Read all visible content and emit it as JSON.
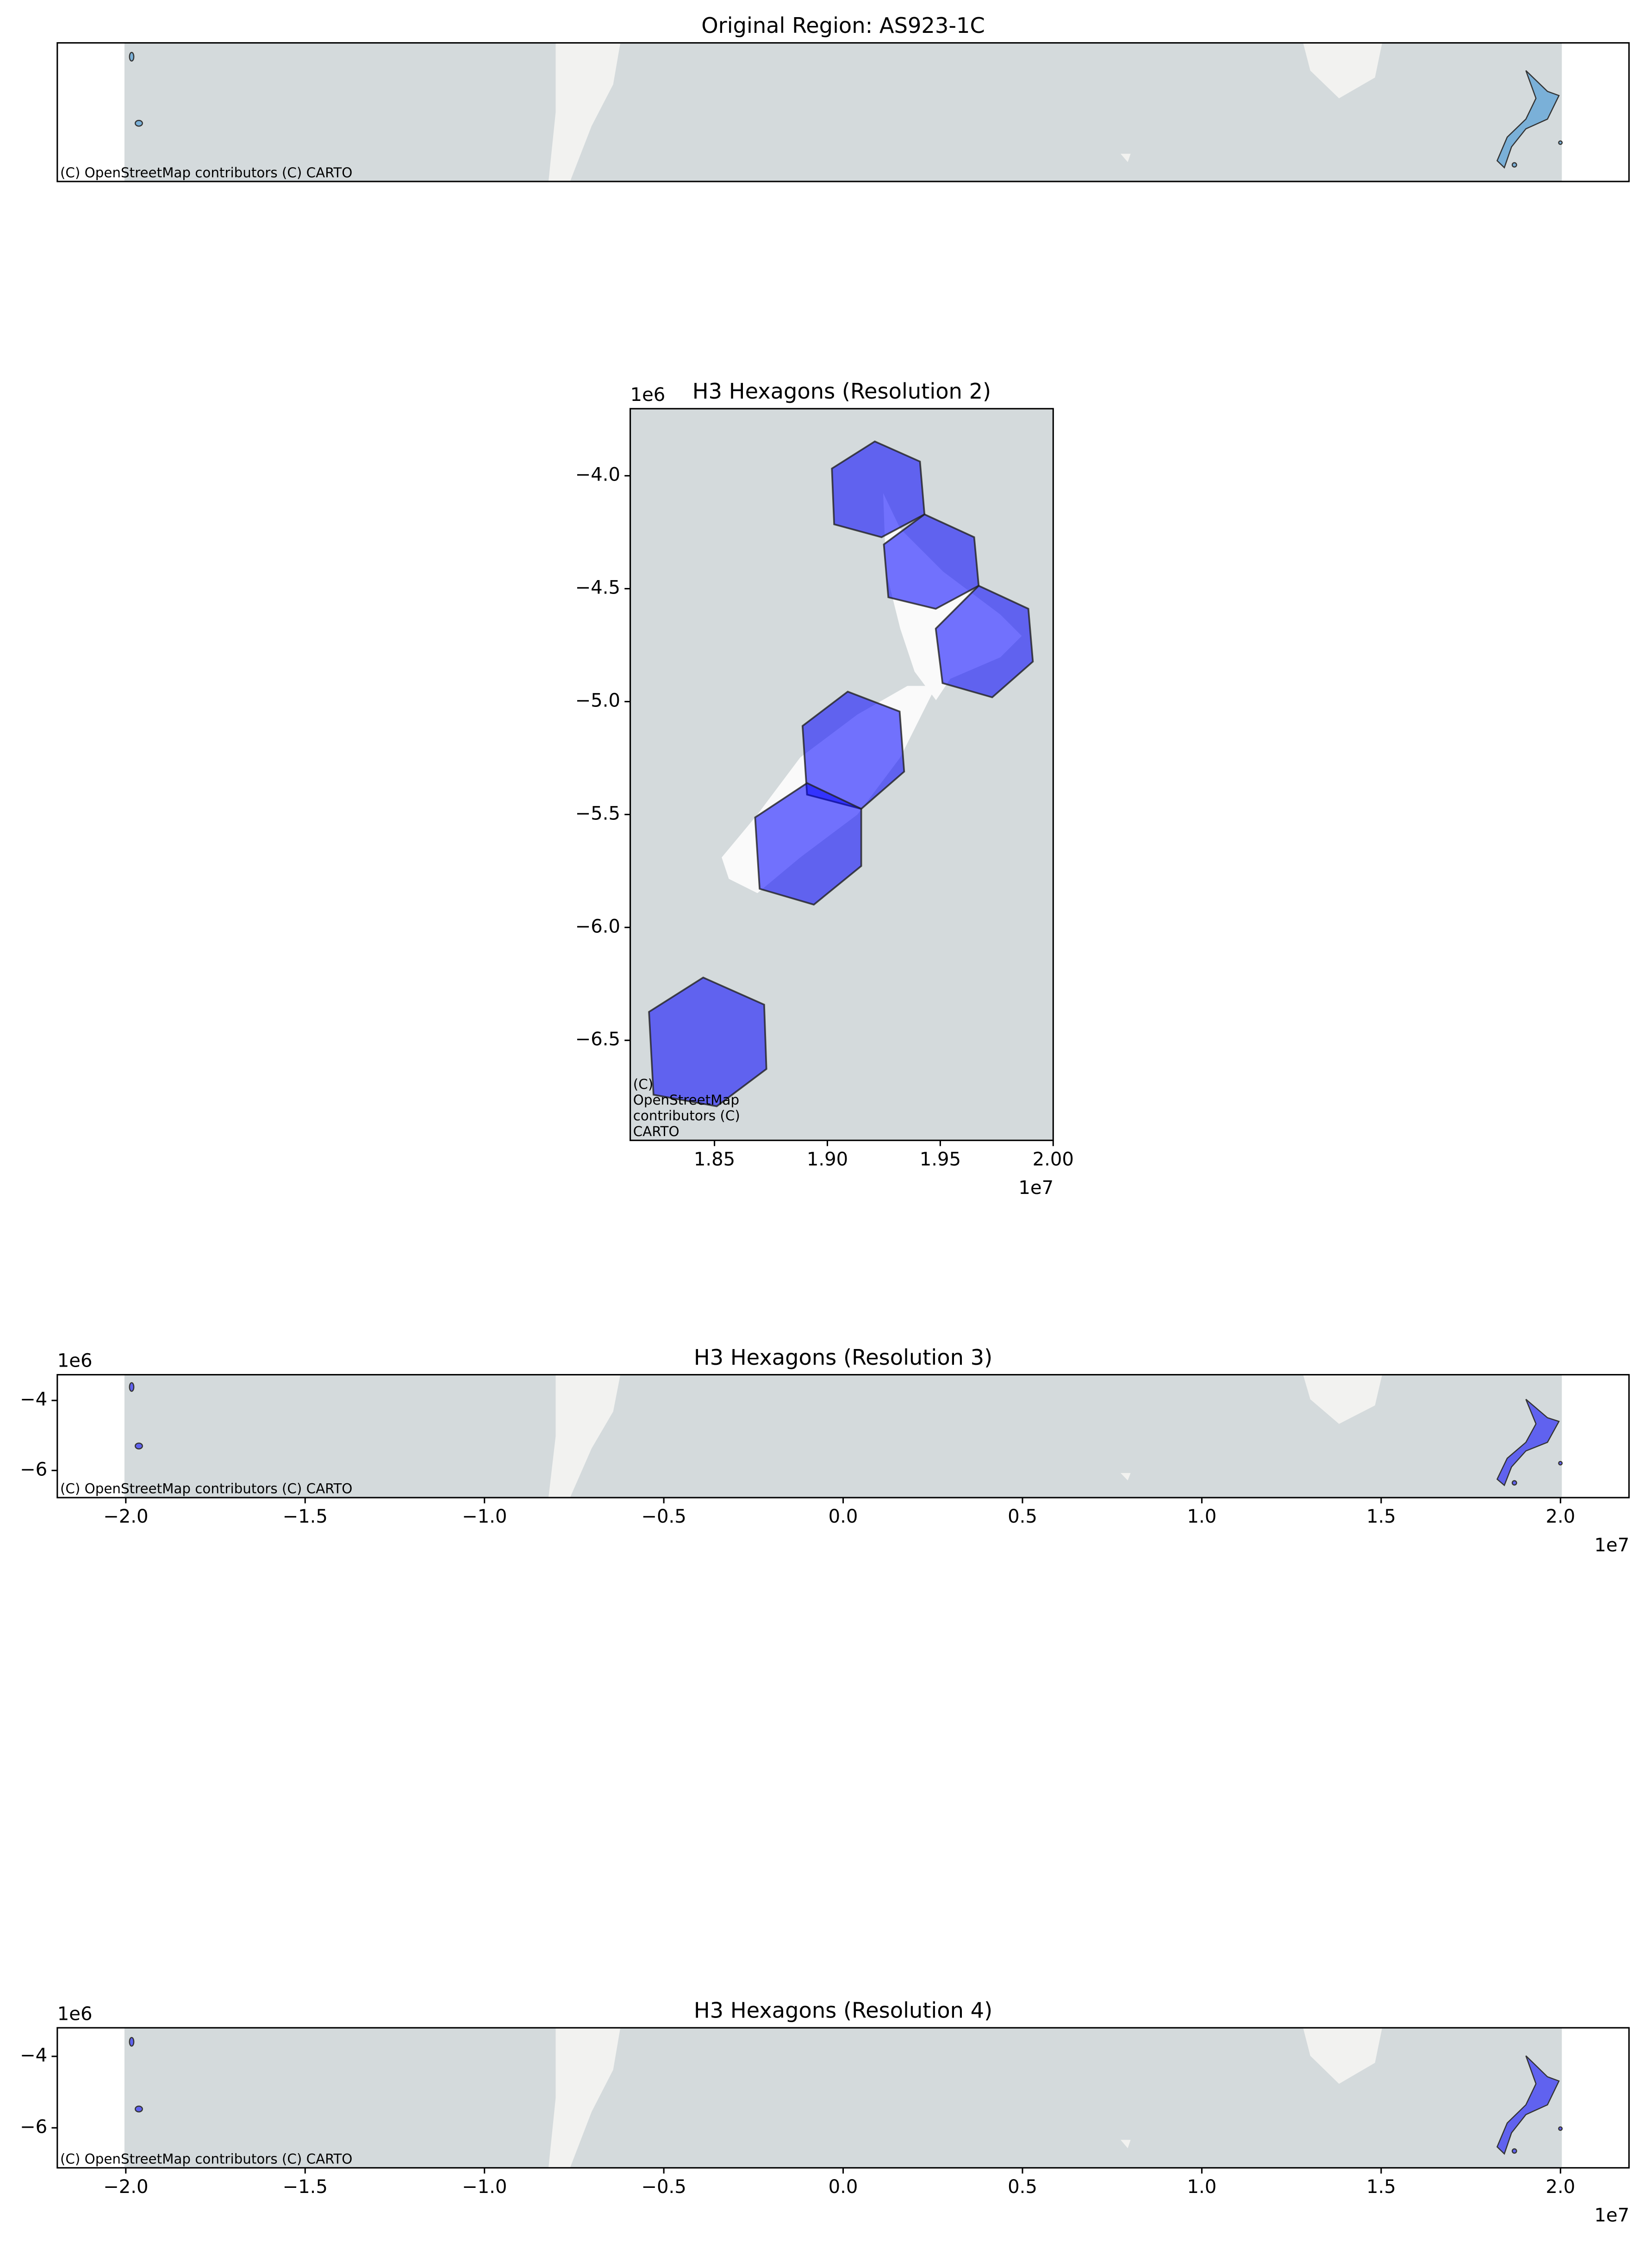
{
  "chart_data": [
    {
      "type": "map",
      "title": "Original Region: AS923-1C",
      "attribution": "(C) OpenStreetMap contributors (C) CARTO",
      "xlim": [
        -21910000,
        21910000
      ],
      "ylim": [
        -7100000,
        -3200000
      ],
      "color": "#7ab0d8",
      "alpha": 1
    },
    {
      "type": "map",
      "title": "H3 Hexagons (Resolution 2)",
      "attribution": "(C) OpenStreetMap contributors (C) CARTO",
      "xlim": [
        18127000,
        20000000
      ],
      "ylim": [
        -6943000,
        -3703000
      ],
      "color": "#0000ff",
      "alpha": 0.55,
      "xticks": [
        {
          "value": 18500000,
          "label": "1.85"
        },
        {
          "value": 19000000,
          "label": "1.90"
        },
        {
          "value": 19500000,
          "label": "1.95"
        },
        {
          "value": 20000000,
          "label": "2.00"
        }
      ],
      "yticks": [
        {
          "value": -4000000,
          "label": "−4.0"
        },
        {
          "value": -4500000,
          "label": "−4.5"
        },
        {
          "value": -5000000,
          "label": "−5.0"
        },
        {
          "value": -5500000,
          "label": "−5.5"
        },
        {
          "value": -6000000,
          "label": "−6.0"
        },
        {
          "value": -6500000,
          "label": "−6.5"
        }
      ],
      "x_offset_label": "1e7",
      "y_offset_label": "1e6",
      "polygons": [
        {
          "x": [
            19210000,
            19410000,
            19430000,
            19240000,
            19030000,
            19020000
          ],
          "y": [
            -3848000,
            -3937000,
            -4171000,
            -4272000,
            -4215000,
            -3968000
          ]
        },
        {
          "x": [
            19430000,
            19650000,
            19670000,
            19480000,
            19270000,
            19250000
          ],
          "y": [
            -4171000,
            -4272000,
            -4487000,
            -4589000,
            -4538000,
            -4304000
          ]
        },
        {
          "x": [
            19670000,
            19890000,
            19910000,
            19730000,
            19510000,
            19480000
          ],
          "y": [
            -4487000,
            -4589000,
            -4823000,
            -4981000,
            -4918000,
            -4677000
          ]
        },
        {
          "x": [
            19090000,
            19320000,
            19340000,
            19150000,
            18910000,
            18890000
          ],
          "y": [
            -4956000,
            -5044000,
            -5310000,
            -5475000,
            -5412000,
            -5108000
          ]
        },
        {
          "x": [
            18910000,
            19150000,
            19150000,
            18940000,
            18700000,
            18680000
          ],
          "y": [
            -5361000,
            -5475000,
            -5728000,
            -5899000,
            -5829000,
            -5513000
          ]
        },
        {
          "x": [
            18450000,
            18720000,
            18730000,
            18510000,
            18230000,
            18210000
          ],
          "y": [
            -6222000,
            -6342000,
            -6627000,
            -6792000,
            -6741000,
            -6374000
          ]
        }
      ]
    },
    {
      "type": "map",
      "title": "H3 Hexagons (Resolution 3)",
      "attribution": "(C) OpenStreetMap contributors (C) CARTO",
      "xlim": [
        -21910000,
        21910000
      ],
      "ylim": [
        -6776000,
        -3265000
      ],
      "color": "#0000ff",
      "alpha": 0.55,
      "xticks": [
        {
          "value": -20000000,
          "label": "−2.0"
        },
        {
          "value": -15000000,
          "label": "−1.5"
        },
        {
          "value": -10000000,
          "label": "−1.0"
        },
        {
          "value": -5000000,
          "label": "−0.5"
        },
        {
          "value": 0,
          "label": "0.0"
        },
        {
          "value": 5000000,
          "label": "0.5"
        },
        {
          "value": 10000000,
          "label": "1.0"
        },
        {
          "value": 15000000,
          "label": "1.5"
        },
        {
          "value": 20000000,
          "label": "2.0"
        }
      ],
      "yticks": [
        {
          "value": -4000000,
          "label": "−4"
        },
        {
          "value": -6000000,
          "label": "−6"
        }
      ],
      "x_offset_label": "1e7",
      "y_offset_label": "1e6"
    },
    {
      "type": "map",
      "title": "H3 Hexagons (Resolution 4)",
      "attribution": "(C) OpenStreetMap contributors (C) CARTO",
      "xlim": [
        -21910000,
        21910000
      ],
      "ylim": [
        -7120000,
        -3200000
      ],
      "color": "#0000ff",
      "alpha": 0.55,
      "xticks": [
        {
          "value": -20000000,
          "label": "−2.0"
        },
        {
          "value": -15000000,
          "label": "−1.5"
        },
        {
          "value": -10000000,
          "label": "−1.0"
        },
        {
          "value": -5000000,
          "label": "−0.5"
        },
        {
          "value": 0,
          "label": "0.0"
        },
        {
          "value": 5000000,
          "label": "0.5"
        },
        {
          "value": 10000000,
          "label": "1.0"
        },
        {
          "value": 15000000,
          "label": "1.5"
        },
        {
          "value": 20000000,
          "label": "2.0"
        }
      ],
      "yticks": [
        {
          "value": -4000000,
          "label": "−4"
        },
        {
          "value": -6000000,
          "label": "−6"
        }
      ],
      "x_offset_label": "1e7",
      "y_offset_label": "1e6"
    }
  ]
}
